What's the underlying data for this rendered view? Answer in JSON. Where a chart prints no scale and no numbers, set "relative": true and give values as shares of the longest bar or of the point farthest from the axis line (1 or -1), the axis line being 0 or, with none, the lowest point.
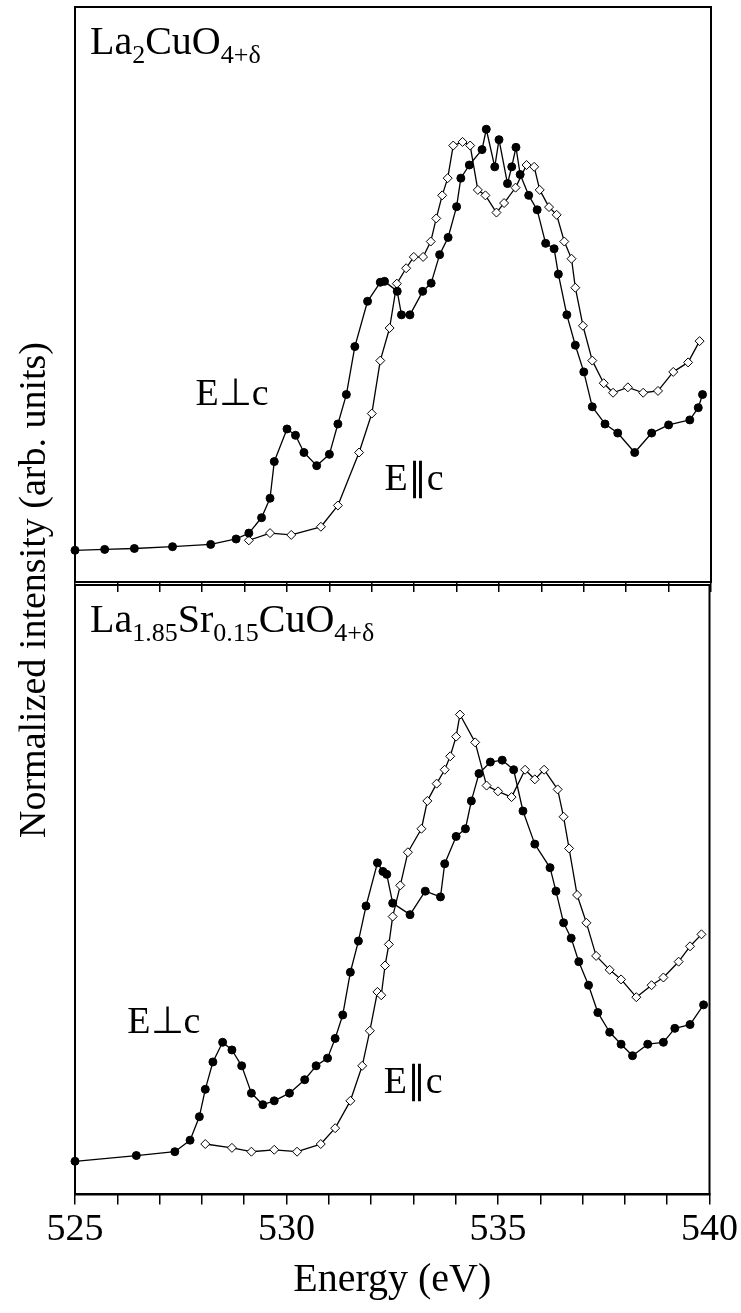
{
  "chart_data": [
    {
      "type": "line",
      "title": "La$_{2}$CuO$_{4+δ}$",
      "ylabel": "Normalized intensity (arb. units)",
      "relative": true,
      "tick_labels": false,
      "line_style": "solid",
      "xlim": [
        525,
        540
      ],
      "xticks": [
        525,
        {
          "value": 526,
          "label": null
        },
        {
          "value": 527,
          "label": null
        },
        {
          "value": 528,
          "label": null
        },
        {
          "value": 529,
          "label": null
        },
        530,
        {
          "value": 531,
          "label": null
        },
        {
          "value": 532,
          "label": null
        },
        {
          "value": 533,
          "label": null
        },
        {
          "value": 534,
          "label": null
        },
        535,
        {
          "value": 536,
          "label": null
        },
        {
          "value": 537,
          "label": null
        },
        {
          "value": 538,
          "label": null
        },
        {
          "value": 539,
          "label": null
        },
        540
      ],
      "series": [
        {
          "color": "#000000",
          "marker": "circle",
          "x": [
            525.0,
            525.7,
            526.4,
            527.3,
            528.2,
            528.8,
            529.1,
            529.4,
            529.6,
            529.7,
            530.0,
            530.2,
            530.4,
            530.7,
            531.0,
            531.2,
            531.4,
            531.6,
            531.9,
            532.2,
            532.3,
            532.6,
            532.7,
            532.9,
            533.2,
            533.4,
            533.6,
            533.8,
            534.0,
            534.1,
            534.3,
            534.6,
            534.7,
            534.9,
            535.0,
            535.2,
            535.3,
            535.4,
            535.5,
            535.7,
            535.9,
            536.1,
            536.3,
            536.4,
            536.6,
            536.8,
            537.0,
            537.2,
            537.5,
            537.8,
            538.2,
            538.6,
            539.0,
            539.5,
            539.7,
            539.8
          ],
          "values": [
            0.07,
            0.072,
            0.074,
            0.078,
            0.083,
            0.095,
            0.108,
            0.142,
            0.185,
            0.266,
            0.338,
            0.324,
            0.286,
            0.257,
            0.282,
            0.349,
            0.414,
            0.52,
            0.62,
            0.662,
            0.664,
            0.642,
            0.59,
            0.59,
            0.642,
            0.66,
            0.723,
            0.761,
            0.829,
            0.892,
            0.921,
            0.955,
            1,
            0.917,
            0.977,
            0.88,
            0.917,
            0.96,
            0.9,
            0.854,
            0.822,
            0.748,
            0.736,
            0.68,
            0.59,
            0.523,
            0.464,
            0.387,
            0.349,
            0.329,
            0.286,
            0.329,
            0.347,
            0.358,
            0.385,
            0.414
          ]
        },
        {
          "color": "#000000",
          "marker": "diamond",
          "x": [
            529.1,
            529.6,
            530.1,
            530.8,
            531.2,
            531.7,
            532.0,
            532.2,
            532.42,
            532.59,
            532.81,
            532.99,
            533.21,
            533.39,
            533.52,
            533.66,
            533.79,
            533.92,
            534.14,
            534.32,
            534.5,
            534.68,
            534.94,
            535.12,
            535.39,
            535.65,
            535.83,
            535.96,
            536.18,
            536.36,
            536.54,
            536.71,
            536.8,
            536.98,
            537.2,
            537.47,
            537.69,
            538.04,
            538.4,
            538.75,
            539.11,
            539.46,
            539.73
          ],
          "values": [
            0.092,
            0.108,
            0.104,
            0.122,
            0.169,
            0.286,
            0.372,
            0.489,
            0.561,
            0.659,
            0.693,
            0.718,
            0.718,
            0.752,
            0.803,
            0.854,
            0.892,
            0.964,
            0.972,
            0.964,
            0.866,
            0.854,
            0.816,
            0.837,
            0.871,
            0.921,
            0.917,
            0.866,
            0.828,
            0.811,
            0.752,
            0.714,
            0.65,
            0.566,
            0.489,
            0.439,
            0.418,
            0.43,
            0.418,
            0.422,
            0.464,
            0.485,
            0.532
          ]
        }
      ],
      "annotations": [
        "E⊥c",
        "E∥c"
      ]
    },
    {
      "type": "line",
      "title": "La$_{1.85}$Sr$_{0.15}$CuO$_{4+δ}$",
      "xlabel": "Energy (eV)",
      "relative": true,
      "tick_labels": "x",
      "line_style": "solid",
      "xlim": [
        525,
        540
      ],
      "xticks": [
        525,
        {
          "value": 526,
          "label": null
        },
        {
          "value": 527,
          "label": null
        },
        {
          "value": 528,
          "label": null
        },
        {
          "value": 529,
          "label": null
        },
        530,
        {
          "value": 531,
          "label": null
        },
        {
          "value": 532,
          "label": null
        },
        {
          "value": 533,
          "label": null
        },
        {
          "value": 534,
          "label": null
        },
        535,
        {
          "value": 536,
          "label": null
        },
        {
          "value": 537,
          "label": null
        },
        {
          "value": 538,
          "label": null
        },
        {
          "value": 539,
          "label": null
        },
        540
      ],
      "series": [
        {
          "color": "#000000",
          "marker": "circle",
          "x": [
            525.0,
            526.45,
            527.36,
            527.72,
            527.94,
            528.08,
            528.26,
            528.49,
            528.71,
            528.94,
            529.17,
            529.44,
            529.71,
            530.07,
            530.43,
            530.7,
            530.97,
            531.15,
            531.33,
            531.51,
            531.7,
            531.88,
            532.15,
            532.28,
            532.37,
            532.51,
            532.92,
            533.28,
            533.64,
            533.74,
            534.01,
            534.23,
            534.37,
            534.55,
            534.82,
            535.1,
            535.37,
            535.59,
            535.87,
            536.23,
            536.37,
            536.55,
            536.73,
            536.91,
            537.14,
            537.36,
            537.64,
            537.91,
            538.18,
            538.54,
            538.91,
            539.18,
            539.54,
            539.86
          ],
          "values": [
            0.069,
            0.081,
            0.089,
            0.113,
            0.162,
            0.219,
            0.276,
            0.317,
            0.301,
            0.268,
            0.211,
            0.187,
            0.195,
            0.211,
            0.239,
            0.268,
            0.284,
            0.325,
            0.374,
            0.463,
            0.528,
            0.601,
            0.691,
            0.673,
            0.667,
            0.607,
            0.583,
            0.632,
            0.62,
            0.689,
            0.746,
            0.762,
            0.82,
            0.877,
            0.901,
            0.905,
            0.885,
            0.799,
            0.73,
            0.681,
            0.632,
            0.566,
            0.534,
            0.485,
            0.436,
            0.379,
            0.338,
            0.313,
            0.289,
            0.313,
            0.317,
            0.346,
            0.354,
            0.395
          ]
        },
        {
          "color": "#000000",
          "marker": "diamond",
          "x": [
            528.08,
            528.71,
            529.17,
            529.71,
            530.25,
            530.81,
            531.15,
            531.51,
            531.79,
            531.97,
            532.15,
            532.24,
            532.33,
            532.42,
            532.51,
            532.69,
            532.87,
            533.19,
            533.33,
            533.55,
            533.74,
            533.87,
            534.01,
            534.1,
            534.46,
            534.73,
            535.0,
            535.32,
            535.64,
            535.87,
            536.09,
            536.41,
            536.55,
            536.68,
            536.87,
            537.09,
            537.32,
            537.64,
            537.91,
            538.27,
            538.63,
            538.91,
            539.27,
            539.54,
            539.81
          ],
          "values": [
            0.105,
            0.097,
            0.089,
            0.093,
            0.089,
            0.105,
            0.138,
            0.195,
            0.268,
            0.341,
            0.422,
            0.415,
            0.477,
            0.521,
            0.579,
            0.644,
            0.713,
            0.762,
            0.82,
            0.856,
            0.885,
            0.913,
            0.954,
            1,
            0.942,
            0.852,
            0.84,
            0.828,
            0.885,
            0.865,
            0.885,
            0.844,
            0.787,
            0.721,
            0.624,
            0.566,
            0.497,
            0.468,
            0.448,
            0.411,
            0.436,
            0.452,
            0.485,
            0.517,
            0.542
          ]
        }
      ],
      "annotations": [
        "E⊥c",
        "E∥c"
      ]
    }
  ]
}
